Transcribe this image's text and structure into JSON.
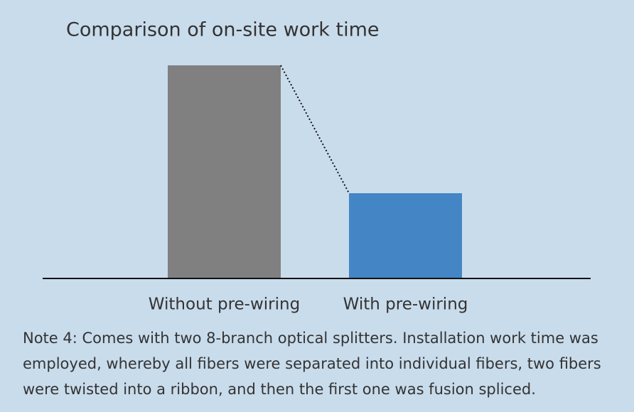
{
  "chart_data": {
    "type": "bar",
    "title": "Comparison of on-site work time",
    "categories": [
      "Without pre-wiring",
      "With pre-wiring"
    ],
    "series": [
      {
        "values": [
          100,
          40
        ],
        "colors": [
          "#808080",
          "#4486c5"
        ]
      }
    ],
    "connector": "dotted",
    "note": "Note 4: Comes with two 8-branch optical splitters. Installation work time was employed, whereby all fibers were separated into individual fibers, two fibers were twisted into a ribbon, and then the first one was fusion spliced."
  }
}
